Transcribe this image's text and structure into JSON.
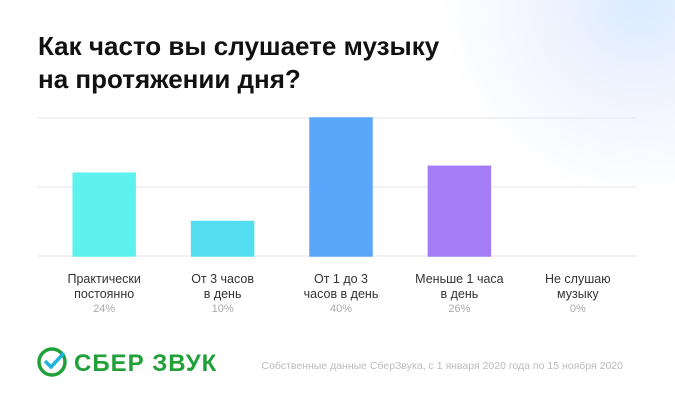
{
  "chart_data": {
    "type": "bar",
    "title": "Как часто вы слушаете музыку\nна протяжении дня?",
    "categories": [
      "Практически\nпостоянно",
      "От 3 часов\nв день",
      "От 1 до 3\nчасов в день",
      "Меньше 1 часа\nв день",
      "Не слушаю\nмузыку"
    ],
    "values": [
      24,
      10,
      40,
      26,
      0
    ],
    "value_labels": [
      "24%",
      "10%",
      "40%",
      "26%",
      "0%"
    ],
    "colors": [
      "#5ef2ef",
      "#55def2",
      "#5aa6fb",
      "#a47cf6",
      "#9b7af4"
    ],
    "ylim": [
      0,
      40
    ],
    "yticks": [
      0,
      20,
      40
    ],
    "grid": true
  },
  "footer": {
    "brand": "СБЕР ЗВУК",
    "source": "Собственные данные СберЗвука, с 1 января 2020 года по 15 ноября 2020"
  }
}
